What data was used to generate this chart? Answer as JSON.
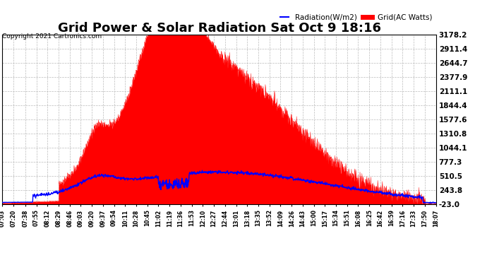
{
  "title": "Grid Power & Solar Radiation Sat Oct 9 18:16",
  "copyright": "Copyright 2021 Cartronics.com",
  "legend_radiation": "Radiation(W/m2)",
  "legend_grid": "Grid(AC Watts)",
  "yticks": [
    -23.0,
    243.8,
    510.5,
    777.3,
    1044.1,
    1310.8,
    1577.6,
    1844.4,
    2111.1,
    2377.9,
    2644.7,
    2911.4,
    3178.2
  ],
  "ylim": [
    -23.0,
    3178.2
  ],
  "xtick_labels": [
    "07:03",
    "07:20",
    "07:38",
    "07:55",
    "08:12",
    "08:29",
    "08:46",
    "09:03",
    "09:20",
    "09:37",
    "09:54",
    "10:11",
    "10:28",
    "10:45",
    "11:02",
    "11:19",
    "11:36",
    "11:53",
    "12:10",
    "12:27",
    "12:44",
    "13:01",
    "13:18",
    "13:35",
    "13:52",
    "14:09",
    "14:26",
    "14:43",
    "15:00",
    "15:17",
    "15:34",
    "15:51",
    "16:08",
    "16:25",
    "16:42",
    "16:59",
    "17:16",
    "17:33",
    "17:50",
    "18:07"
  ],
  "background_color": "#ffffff",
  "plot_bg_color": "#ffffff",
  "grid_color": "#bbbbbb",
  "radiation_color": "#0000ff",
  "grid_fill_color": "#ff0000",
  "title_fontsize": 13,
  "label_fontsize": 7.5
}
